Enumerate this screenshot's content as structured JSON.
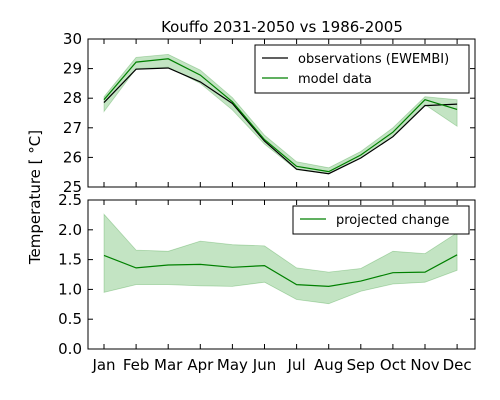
{
  "chart_data": {
    "title": "Kouffo 2031-2050 vs 1986-2005",
    "ylabel": "Temperature [ °C]",
    "categories": [
      "Jan",
      "Feb",
      "Mar",
      "Apr",
      "May",
      "Jun",
      "Jul",
      "Aug",
      "Sep",
      "Oct",
      "Nov",
      "Dec"
    ],
    "panels": [
      {
        "type": "line",
        "ylim": [
          25,
          30
        ],
        "yticks": [
          "25",
          "26",
          "27",
          "28",
          "29",
          "30"
        ],
        "legend_position": "top-right",
        "series": [
          {
            "name": "observations (EWEMBI)",
            "color": "#000000",
            "values": [
              27.85,
              28.98,
              29.02,
              28.55,
              27.82,
              26.55,
              25.6,
              25.45,
              25.98,
              26.7,
              27.75,
              27.8
            ]
          },
          {
            "name": "model data",
            "color": "#008000",
            "values": [
              27.95,
              29.22,
              29.33,
              28.78,
              27.88,
              26.6,
              25.7,
              25.52,
              26.08,
              26.85,
              27.95,
              27.62
            ],
            "band_lower": [
              27.55,
              29.0,
              29.05,
              28.5,
              27.6,
              26.45,
              25.58,
              25.45,
              25.98,
              26.7,
              27.78,
              27.05
            ],
            "band_upper": [
              28.05,
              29.38,
              29.48,
              28.95,
              28.02,
              26.75,
              25.85,
              25.65,
              26.2,
              27.0,
              28.05,
              27.95
            ],
            "band_color": "#b9dfb9"
          }
        ]
      },
      {
        "type": "line",
        "ylim": [
          0,
          2.5
        ],
        "yticks": [
          "0.0",
          "0.5",
          "1.0",
          "1.5",
          "2.0",
          "2.5"
        ],
        "legend_position": "top-right",
        "series": [
          {
            "name": "projected change",
            "color": "#008000",
            "values": [
              1.57,
              1.36,
              1.41,
              1.42,
              1.37,
              1.4,
              1.08,
              1.05,
              1.14,
              1.28,
              1.29,
              1.58
            ],
            "band_lower": [
              0.95,
              1.08,
              1.08,
              1.06,
              1.05,
              1.12,
              0.83,
              0.76,
              0.97,
              1.09,
              1.12,
              1.32
            ],
            "band_upper": [
              2.26,
              1.66,
              1.64,
              1.81,
              1.75,
              1.73,
              1.36,
              1.29,
              1.35,
              1.64,
              1.6,
              1.95
            ],
            "band_color": "#b9dfb9"
          }
        ]
      }
    ]
  }
}
